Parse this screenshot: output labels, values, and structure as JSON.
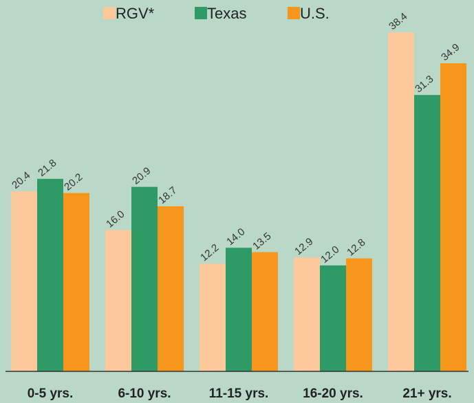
{
  "chart_data": {
    "type": "bar",
    "categories": [
      "0-5 yrs.",
      "6-10 yrs.",
      "11-15 yrs.",
      "16-20 yrs.",
      "21+ yrs."
    ],
    "series": [
      {
        "name": "RGV*",
        "color": "#fdc99a",
        "values": [
          20.4,
          16.0,
          12.2,
          12.9,
          38.4
        ],
        "value_labels": [
          "20.4",
          "16.0",
          "12.2",
          "12.9",
          "38.4"
        ]
      },
      {
        "name": "Texas",
        "color": "#2e9a66",
        "values": [
          21.8,
          20.9,
          14.0,
          12.0,
          31.3
        ],
        "value_labels": [
          "21.8",
          "20.9",
          "14.0",
          "12.0",
          "31.3"
        ]
      },
      {
        "name": "U.S.",
        "color": "#f7961d",
        "values": [
          20.2,
          18.7,
          13.5,
          12.8,
          34.9
        ],
        "value_labels": [
          "20.2",
          "18.7",
          "13.5",
          "12.8",
          "34.9"
        ]
      }
    ],
    "legend": "top"
  }
}
